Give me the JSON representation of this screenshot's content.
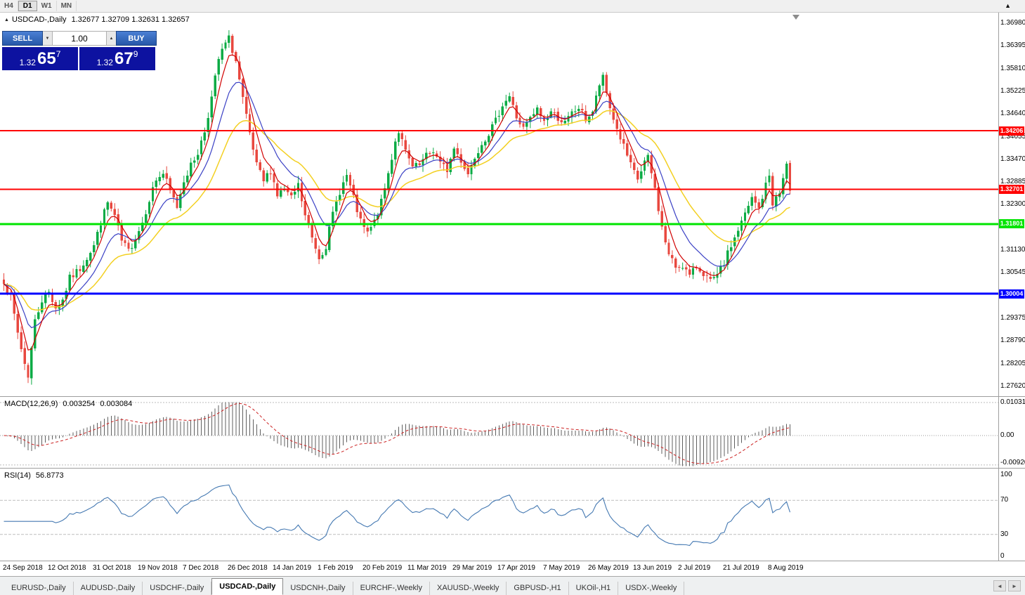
{
  "toolbar": {
    "timeframes": [
      "H4",
      "D1",
      "W1",
      "MN"
    ],
    "active": "D1",
    "scroll_top_icon": "up-arrow"
  },
  "header": {
    "symbol": "USDCAD-,Daily",
    "ohlc": "1.32677 1.32709 1.32631 1.32657"
  },
  "one_click": {
    "sell_label": "SELL",
    "buy_label": "BUY",
    "volume": "1.00",
    "sell_price_head": "1.32",
    "sell_price_pips": "65",
    "sell_price_pt": "7",
    "buy_price_head": "1.32",
    "buy_price_pips": "67",
    "buy_price_pt": "9"
  },
  "price_axis": {
    "ticks": [
      "1.36980",
      "1.36395",
      "1.35810",
      "1.35225",
      "1.34640",
      "1.34055",
      "1.33470",
      "1.32885",
      "1.32300",
      "1.31130",
      "1.30545",
      "1.29375",
      "1.28790",
      "1.28205",
      "1.27620"
    ]
  },
  "macd": {
    "title": "MACD(12,26,9)",
    "value_main": "0.003254",
    "value_signal": "0.003084",
    "scale": [
      "0.010311",
      "0.00",
      "-0.00920"
    ]
  },
  "rsi": {
    "title": "RSI(14)",
    "value": "56.8773",
    "scale": [
      "100",
      "70",
      "30",
      "0"
    ]
  },
  "dates": [
    "24 Sep 2018",
    "12 Oct 2018",
    "31 Oct 2018",
    "19 Nov 2018",
    "7 Dec 2018",
    "26 Dec 2018",
    "14 Jan 2019",
    "1 Feb 2019",
    "20 Feb 2019",
    "11 Mar 2019",
    "29 Mar 2019",
    "17 Apr 2019",
    "7 May 2019",
    "26 May 2019",
    "13 Jun 2019",
    "2 Jul 2019",
    "21 Jul 2019",
    "8 Aug 2019"
  ],
  "tabs": [
    "EURUSD-,Daily",
    "AUDUSD-,Daily",
    "USDCHF-,Daily",
    "USDCAD-,Daily",
    "USDCNH-,Daily",
    "EURCHF-,Weekly",
    "XAUUSD-,Weekly",
    "GBPUSD-,H1",
    "UKOil-,H1",
    "USDX-,Weekly"
  ],
  "active_tab": "USDCAD-,Daily",
  "colors": {
    "bull": "#0CAB45",
    "bear": "#E8483F",
    "ma_fast": "#D10000",
    "ma_mid": "#3B41C5",
    "ma_slow": "#F3D022",
    "macd_hist": "#5f5f5f",
    "macd_signal": "#cc2222",
    "rsi_line": "#4579b2",
    "level_red": "#FF0000",
    "level_green": "#00E400",
    "level_blue": "#0000FF",
    "price_box": "#0d12a0"
  },
  "chart_data": {
    "type": "candlestick",
    "title": "USDCAD-,Daily",
    "symbol": "USDCAD",
    "timeframe": "Daily",
    "candle_count": 228,
    "candles_per_date_label": 13,
    "y_axis": {
      "min": 1.2762,
      "max": 1.3698,
      "tick_step": 0.00585
    },
    "current_bar": {
      "open": 1.32677,
      "high": 1.32709,
      "low": 1.32631,
      "close": 1.32657
    },
    "quote": {
      "sell": 1.32657,
      "buy": 1.32679,
      "volume": 1.0
    },
    "levels": [
      {
        "price": 1.34206,
        "label": "1.34206",
        "color": "#FF0000",
        "width": 2
      },
      {
        "price": 1.32701,
        "label": "1.32701",
        "color": "#FF0000",
        "width": 2
      },
      {
        "price": 1.31801,
        "label": "1.31801",
        "color": "#00E400",
        "width": 3
      },
      {
        "price": 1.30004,
        "label": "1.30004",
        "color": "#0000FF",
        "width": 3
      }
    ],
    "overlays": [
      {
        "name": "EMA",
        "period": 5,
        "color": "#D10000"
      },
      {
        "name": "EMA",
        "period": 12,
        "color": "#3B41C5"
      },
      {
        "name": "EMA",
        "period": 26,
        "color": "#F3D022"
      }
    ],
    "panes": [
      {
        "name": "MACD",
        "params": [
          12,
          26,
          9
        ],
        "last_values": [
          0.003254,
          0.003084
        ],
        "range": [
          -0.0092,
          0.010311
        ]
      },
      {
        "name": "RSI",
        "params": [
          14
        ],
        "last_value": 56.8773,
        "range": [
          0,
          100
        ],
        "levels": [
          70,
          30
        ]
      }
    ],
    "close_path_anchors": [
      [
        0,
        1.3035
      ],
      [
        2,
        1.299
      ],
      [
        4,
        1.29
      ],
      [
        6,
        1.282
      ],
      [
        7,
        1.279
      ],
      [
        9,
        1.293
      ],
      [
        11,
        1.2985
      ],
      [
        13,
        1.3005
      ],
      [
        15,
        1.2965
      ],
      [
        17,
        1.2985
      ],
      [
        19,
        1.304
      ],
      [
        22,
        1.3065
      ],
      [
        24,
        1.3095
      ],
      [
        26,
        1.3125
      ],
      [
        28,
        1.3185
      ],
      [
        30,
        1.3235
      ],
      [
        32,
        1.32
      ],
      [
        34,
        1.3135
      ],
      [
        36,
        1.311
      ],
      [
        38,
        1.3145
      ],
      [
        40,
        1.3185
      ],
      [
        42,
        1.3245
      ],
      [
        44,
        1.3295
      ],
      [
        46,
        1.331
      ],
      [
        48,
        1.3265
      ],
      [
        50,
        1.3225
      ],
      [
        52,
        1.3295
      ],
      [
        54,
        1.333
      ],
      [
        56,
        1.3365
      ],
      [
        58,
        1.342
      ],
      [
        60,
        1.3505
      ],
      [
        62,
        1.3605
      ],
      [
        64,
        1.3645
      ],
      [
        65,
        1.3658
      ],
      [
        67,
        1.36
      ],
      [
        69,
        1.35
      ],
      [
        71,
        1.341
      ],
      [
        73,
        1.333
      ],
      [
        75,
        1.329
      ],
      [
        77,
        1.332
      ],
      [
        79,
        1.3255
      ],
      [
        81,
        1.327
      ],
      [
        83,
        1.3245
      ],
      [
        85,
        1.328
      ],
      [
        87,
        1.32
      ],
      [
        89,
        1.3145
      ],
      [
        91,
        1.3095
      ],
      [
        93,
        1.3125
      ],
      [
        95,
        1.3205
      ],
      [
        97,
        1.3265
      ],
      [
        99,
        1.3305
      ],
      [
        101,
        1.3245
      ],
      [
        103,
        1.3185
      ],
      [
        105,
        1.3155
      ],
      [
        107,
        1.3185
      ],
      [
        109,
        1.3235
      ],
      [
        111,
        1.331
      ],
      [
        113,
        1.3395
      ],
      [
        114,
        1.342
      ],
      [
        116,
        1.3365
      ],
      [
        118,
        1.3325
      ],
      [
        120,
        1.333
      ],
      [
        122,
        1.3355
      ],
      [
        124,
        1.337
      ],
      [
        126,
        1.3335
      ],
      [
        128,
        1.332
      ],
      [
        130,
        1.3375
      ],
      [
        132,
        1.3345
      ],
      [
        134,
        1.331
      ],
      [
        136,
        1.3355
      ],
      [
        138,
        1.339
      ],
      [
        140,
        1.3415
      ],
      [
        142,
        1.3445
      ],
      [
        144,
        1.349
      ],
      [
        146,
        1.351
      ],
      [
        148,
        1.3455
      ],
      [
        150,
        1.3425
      ],
      [
        152,
        1.345
      ],
      [
        154,
        1.3475
      ],
      [
        156,
        1.3445
      ],
      [
        158,
        1.347
      ],
      [
        160,
        1.3455
      ],
      [
        162,
        1.344
      ],
      [
        164,
        1.3465
      ],
      [
        166,
        1.348
      ],
      [
        168,
        1.345
      ],
      [
        170,
        1.347
      ],
      [
        172,
        1.354
      ],
      [
        173,
        1.3555
      ],
      [
        175,
        1.348
      ],
      [
        177,
        1.3425
      ],
      [
        179,
        1.338
      ],
      [
        181,
        1.333
      ],
      [
        183,
        1.3295
      ],
      [
        185,
        1.334
      ],
      [
        186,
        1.335
      ],
      [
        188,
        1.327
      ],
      [
        190,
        1.317
      ],
      [
        192,
        1.31
      ],
      [
        194,
        1.307
      ],
      [
        196,
        1.3075
      ],
      [
        198,
        1.3045
      ],
      [
        200,
        1.307
      ],
      [
        202,
        1.3055
      ],
      [
        204,
        1.303
      ],
      [
        206,
        1.3045
      ],
      [
        208,
        1.308
      ],
      [
        210,
        1.3125
      ],
      [
        212,
        1.3165
      ],
      [
        214,
        1.3205
      ],
      [
        216,
        1.3245
      ],
      [
        218,
        1.322
      ],
      [
        220,
        1.328
      ],
      [
        221,
        1.3305
      ],
      [
        222,
        1.3235
      ],
      [
        224,
        1.326
      ],
      [
        226,
        1.3335
      ],
      [
        227,
        1.32657
      ]
    ]
  }
}
